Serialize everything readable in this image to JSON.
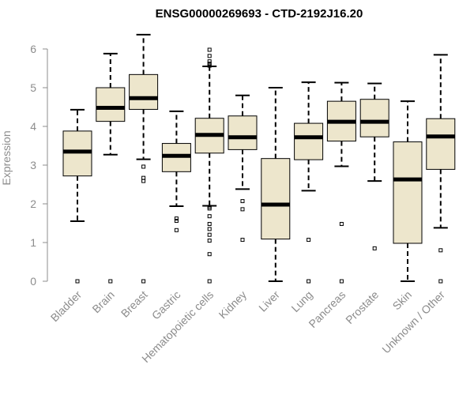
{
  "chart_data": {
    "type": "box",
    "title": "ENSG00000269693 - CTD-2192J16.20",
    "xlabel": "",
    "ylabel": "Expression",
    "ylim": [
      0,
      6.3
    ],
    "yticks": [
      "0",
      "1",
      "2",
      "3",
      "4",
      "5",
      "6"
    ],
    "grid": false,
    "colors": {
      "box_fill": "#ede6cc",
      "box_stroke": "#000000",
      "median": "#000000",
      "axis": "#8c8c8c"
    },
    "categories": [
      "Bladder",
      "Brain",
      "Breast",
      "Gastric",
      "Hematopoietic cells",
      "Kidney",
      "Liver",
      "Lung",
      "Pancreas",
      "Prostate",
      "Skin",
      "Unknown / Other"
    ],
    "boxes": [
      {
        "category": "Bladder",
        "whisker_low": 1.55,
        "q1": 2.72,
        "median": 3.35,
        "q3": 3.88,
        "whisker_high": 4.43,
        "outliers": [
          0.0
        ]
      },
      {
        "category": "Brain",
        "whisker_low": 3.27,
        "q1": 4.13,
        "median": 4.48,
        "q3": 5.0,
        "whisker_high": 5.88,
        "outliers": [
          0.0
        ]
      },
      {
        "category": "Breast",
        "whisker_low": 3.15,
        "q1": 4.44,
        "median": 4.73,
        "q3": 5.34,
        "whisker_high": 6.37,
        "outliers": [
          2.96,
          2.67,
          2.59,
          0.0
        ]
      },
      {
        "category": "Gastric",
        "whisker_low": 1.94,
        "q1": 2.83,
        "median": 3.24,
        "q3": 3.56,
        "whisker_high": 4.39,
        "outliers": [
          1.62,
          1.56,
          1.32
        ]
      },
      {
        "category": "Hematopoietic cells",
        "whisker_low": 1.95,
        "q1": 3.31,
        "median": 3.78,
        "q3": 4.21,
        "whisker_high": 5.55,
        "outliers": [
          5.98,
          5.82,
          5.68,
          5.62,
          5.57,
          1.92,
          1.88,
          1.68,
          1.48,
          1.35,
          1.2,
          1.05,
          0.7,
          0.0
        ]
      },
      {
        "category": "Kidney",
        "whisker_low": 2.38,
        "q1": 3.4,
        "median": 3.72,
        "q3": 4.27,
        "whisker_high": 4.8,
        "outliers": [
          2.07,
          1.86,
          1.07
        ]
      },
      {
        "category": "Liver",
        "whisker_low": 0.0,
        "q1": 1.09,
        "median": 1.98,
        "q3": 3.17,
        "whisker_high": 5.0,
        "outliers": []
      },
      {
        "category": "Lung",
        "whisker_low": 2.34,
        "q1": 3.14,
        "median": 3.72,
        "q3": 4.08,
        "whisker_high": 5.14,
        "outliers": [
          1.07,
          0.0
        ]
      },
      {
        "category": "Pancreas",
        "whisker_low": 2.97,
        "q1": 3.62,
        "median": 4.12,
        "q3": 4.65,
        "whisker_high": 5.13,
        "outliers": [
          1.48,
          0.0
        ]
      },
      {
        "category": "Prostate",
        "whisker_low": 2.59,
        "q1": 3.73,
        "median": 4.12,
        "q3": 4.7,
        "whisker_high": 5.11,
        "outliers": [
          0.85
        ]
      },
      {
        "category": "Skin",
        "whisker_low": 0.0,
        "q1": 0.98,
        "median": 2.63,
        "q3": 3.6,
        "whisker_high": 4.65,
        "outliers": []
      },
      {
        "category": "Unknown / Other",
        "whisker_low": 1.38,
        "q1": 2.89,
        "median": 3.74,
        "q3": 4.2,
        "whisker_high": 5.85,
        "outliers": [
          0.8,
          0.0
        ]
      }
    ]
  }
}
